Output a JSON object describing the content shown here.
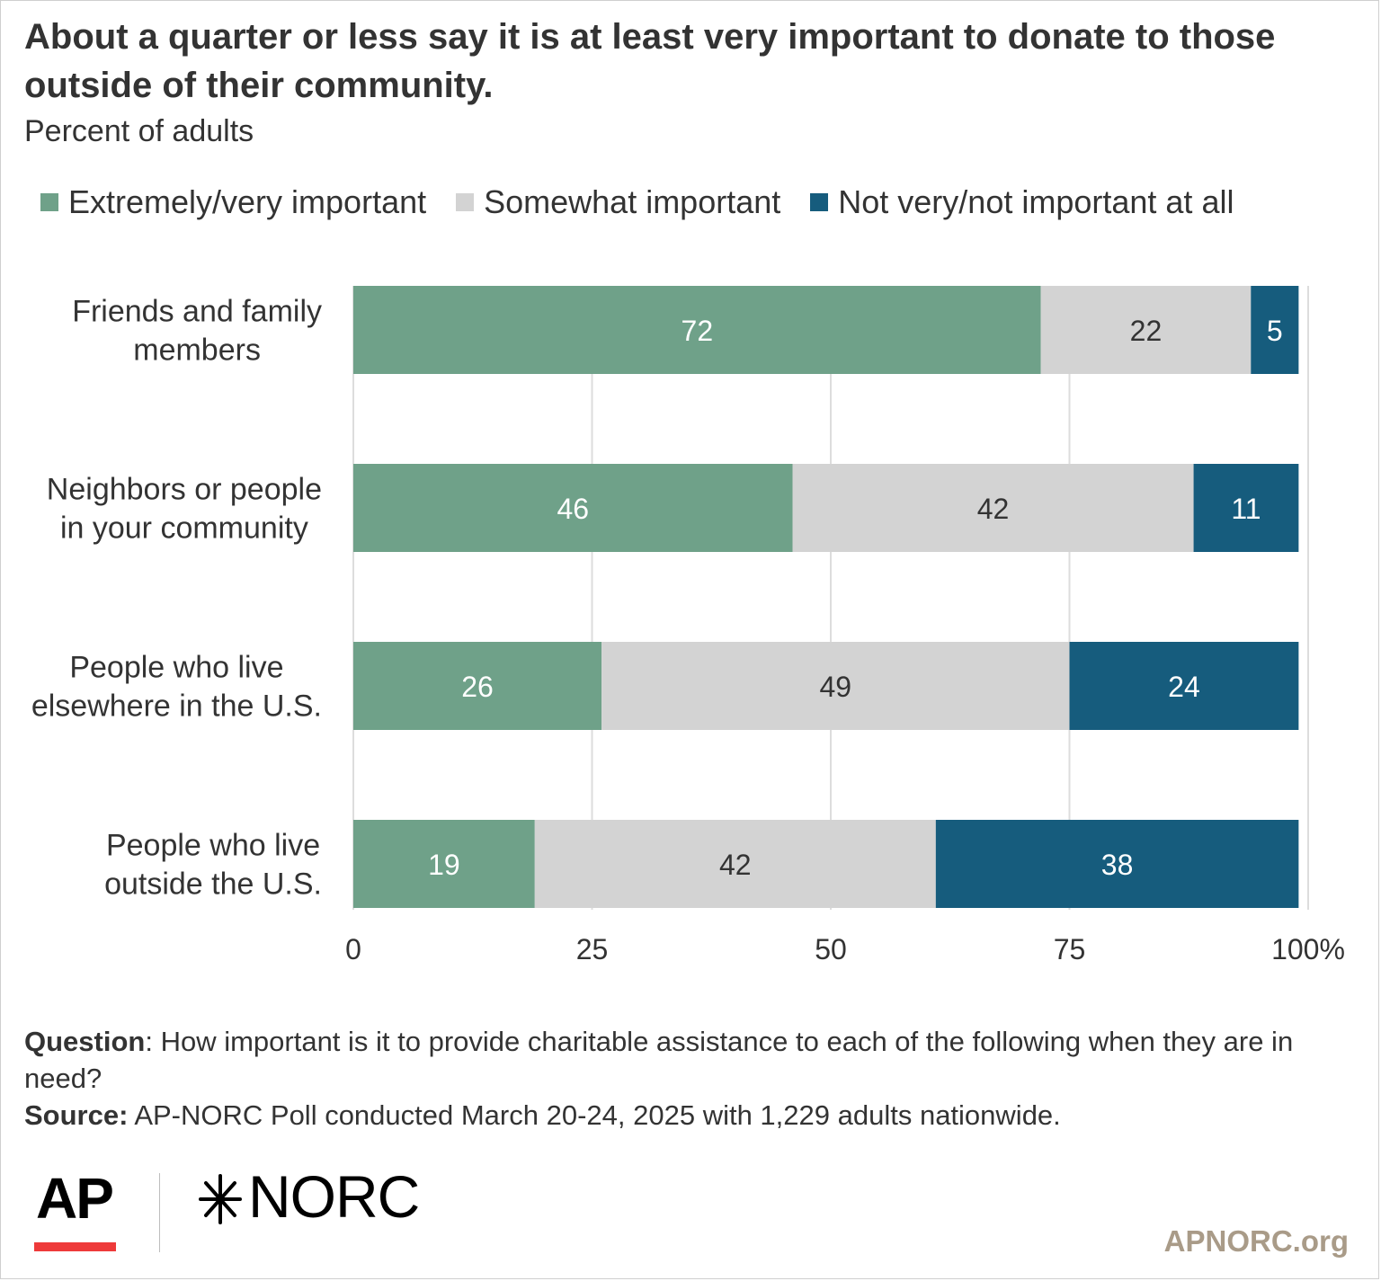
{
  "header": {
    "title": "About a quarter or less say it is at least very important to donate to those outside of their community.",
    "subtitle": "Percent of adults"
  },
  "colors": {
    "extremely_very": "#6fa189",
    "somewhat": "#d3d3d3",
    "not_important": "#165c7d",
    "grid": "#dddddd",
    "ap_red": "#ee3a3a",
    "site_text": "#a99b88"
  },
  "chart_data": {
    "type": "bar",
    "orientation": "horizontal",
    "stacked": true,
    "categories": [
      [
        "Friends and family",
        "members"
      ],
      [
        "Neighbors or people",
        "in your community"
      ],
      [
        "People who live",
        "elsewhere in the U.S."
      ],
      [
        "People who live",
        "outside the U.S."
      ]
    ],
    "series": [
      {
        "name": "Extremely/very important",
        "color": "#6fa189",
        "label_color": "#ffffff",
        "values": [
          72,
          46,
          26,
          19
        ]
      },
      {
        "name": "Somewhat important",
        "color": "#d3d3d3",
        "label_color": "#333333",
        "values": [
          22,
          42,
          49,
          42
        ]
      },
      {
        "name": "Not very/not important at all",
        "color": "#165c7d",
        "label_color": "#ffffff",
        "values": [
          5,
          11,
          24,
          38
        ]
      }
    ],
    "xlim": [
      0,
      100
    ],
    "xticks": [
      0,
      25,
      50,
      75,
      100
    ],
    "xtick_labels": [
      "0",
      "25",
      "50",
      "75",
      "100%"
    ],
    "grid": true,
    "legend_position": "top"
  },
  "footer": {
    "question_label": "Question",
    "question_text": ": How important is it to provide charitable assistance to each of the following when they are in need?",
    "source_label": "Source:",
    "source_text": " AP-NORC Poll conducted March 20-24, 2025 with 1,229 adults nationwide."
  },
  "branding": {
    "ap_logo": "AP",
    "norc_logo": "NORC",
    "norc_mark_icon": "norc-star-icon",
    "site": "APNORC.org"
  }
}
